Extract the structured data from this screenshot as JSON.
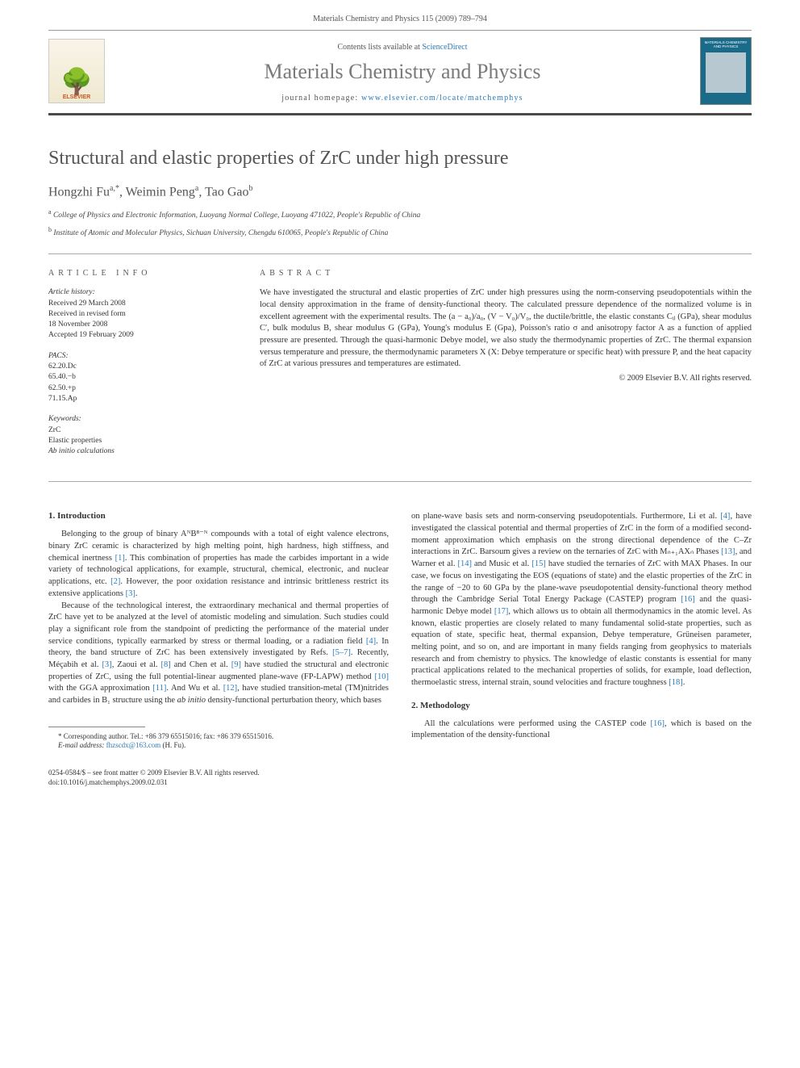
{
  "header": {
    "running_head": "Materials Chemistry and Physics 115 (2009) 789–794"
  },
  "masthead": {
    "contents_prefix": "Contents lists available at ",
    "contents_link": "ScienceDirect",
    "journal_title": "Materials Chemistry and Physics",
    "homepage_prefix": "journal homepage: ",
    "homepage_url": "www.elsevier.com/locate/matchemphys",
    "publisher_logo": "ELSEVIER",
    "cover_title": "MATERIALS CHEMISTRY AND PHYSICS"
  },
  "article": {
    "title": "Structural and elastic properties of ZrC under high pressure",
    "authors_html": "Hongzhi Fu<sup>a,*</sup>, Weimin Peng<sup>a</sup>, Tao Gao<sup>b</sup>",
    "affiliations": [
      {
        "marker": "a",
        "text": "College of Physics and Electronic Information, Luoyang Normal College, Luoyang 471022, People's Republic of China"
      },
      {
        "marker": "b",
        "text": "Institute of Atomic and Molecular Physics, Sichuan University, Chengdu 610065, People's Republic of China"
      }
    ]
  },
  "info": {
    "header": "article info",
    "history_label": "Article history:",
    "history": [
      "Received 29 March 2008",
      "Received in revised form",
      "18 November 2008",
      "Accepted 19 February 2009"
    ],
    "pacs_label": "PACS:",
    "pacs": [
      "62.20.Dc",
      "65.40.−b",
      "62.50.+p",
      "71.15.Ap"
    ],
    "keywords_label": "Keywords:",
    "keywords": [
      "ZrC",
      "Elastic properties",
      "Ab initio calculations"
    ]
  },
  "abstract": {
    "header": "abstract",
    "text": "We have investigated the structural and elastic properties of ZrC under high pressures using the norm-conserving pseudopotentials within the local density approximation in the frame of density-functional theory. The calculated pressure dependence of the normalized volume is in excellent agreement with the experimental results. The (a − a₀)/a₀, (V − V₀)/V₀, the ductile/brittle, the elastic constants Cᵢⱼ (GPa), shear modulus C′, bulk modulus B, shear modulus G (GPa), Young's modulus E (Gpa), Poisson's ratio σ and anisotropy factor A as a function of applied pressure are presented. Through the quasi-harmonic Debye model, we also study the thermodynamic properties of ZrC. The thermal expansion versus temperature and pressure, the thermodynamic parameters X (X: Debye temperature or specific heat) with pressure P, and the heat capacity of ZrC at various pressures and temperatures are estimated.",
    "copyright": "© 2009 Elsevier B.V. All rights reserved."
  },
  "sections": {
    "intro_header": "1. Introduction",
    "intro_p1": "Belonging to the group of binary AᴺB⁸⁻ᴺ compounds with a total of eight valence electrons, binary ZrC ceramic is characterized by high melting point, high hardness, high stiffness, and chemical inertness [1]. This combination of properties has made the carbides important in a wide variety of technological applications, for example, structural, chemical, electronic, and nuclear applications, etc. [2]. However, the poor oxidation resistance and intrinsic brittleness restrict its extensive applications [3].",
    "intro_p2": "Because of the technological interest, the extraordinary mechanical and thermal properties of ZrC have yet to be analyzed at the level of atomistic modeling and simulation. Such studies could play a significant role from the standpoint of predicting the performance of the material under service conditions, typically earmarked by stress or thermal loading, or a radiation field [4]. In theory, the band structure of ZrC has been extensively investigated by Refs. [5–7]. Recently, Méçabih et al. [3], Zaoui et al. [8] and Chen et al. [9] have studied the structural and electronic properties of ZrC, using the full potential-linear augmented plane-wave (FP-LAPW) method [10] with the GGA approximation [11]. And Wu et al. [12], have studied transition-metal (TM)nitrides and carbides in B₁ structure using the ab initio density-functional perturbation theory, which bases",
    "col2_p1": "on plane-wave basis sets and norm-conserving pseudopotentials. Furthermore, Li et al. [4], have investigated the classical potential and thermal properties of ZrC in the form of a modified second-moment approximation which emphasis on the strong directional dependence of the C–Zr interactions in ZrC. Barsoum gives a review on the ternaries of ZrC with Mₙ₊₁AXₙ Phases [13], and Warner et al. [14] and Music et al. [15] have studied the ternaries of ZrC with MAX Phases. In our case, we focus on investigating the EOS (equations of state) and the elastic properties of the ZrC in the range of −20 to 60 GPa by the plane-wave pseudopotential density-functional theory method through the Cambridge Serial Total Energy Package (CASTEP) program [16] and the quasi-harmonic Debye model [17], which allows us to obtain all thermodynamics in the atomic level. As known, elastic properties are closely related to many fundamental solid-state properties, such as equation of state, specific heat, thermal expansion, Debye temperature, Grüneisen parameter, melting point, and so on, and are important in many fields ranging from geophysics to materials research and from chemistry to physics. The knowledge of elastic constants is essential for many practical applications related to the mechanical properties of solids, for example, load deflection, thermoelastic stress, internal strain, sound velocities and fracture toughness [18].",
    "method_header": "2. Methodology",
    "method_p1": "All the calculations were performed using the CASTEP code [16], which is based on the implementation of the density-functional"
  },
  "footnote": {
    "corr": "* Corresponding author. Tel.: +86 379 65515016; fax: +86 379 65515016.",
    "email_label": "E-mail address: ",
    "email": "fhzscdx@163.com",
    "email_suffix": " (H. Fu)."
  },
  "footer": {
    "line1": "0254-0584/$ – see front matter © 2009 Elsevier B.V. All rights reserved.",
    "line2": "doi:10.1016/j.matchemphys.2009.02.031"
  },
  "link_color": "#2b7bb9"
}
